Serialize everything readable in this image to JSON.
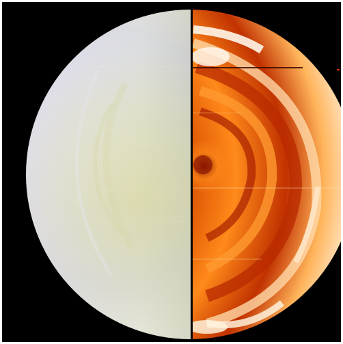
{
  "image": {
    "subject": "",
    "colors": {
      "background": "#000000",
      "frame": "#ffffff",
      "visible_hemisphere_light": "#f2f0ee",
      "visible_hemisphere_mid": "#c9cfc0",
      "visible_hemisphere_shadow": "#3a3c38",
      "visible_tint_yellow": "#d6d48a",
      "visible_tint_blue": "#b7b9e6",
      "ir_bright": "#fff3e0",
      "ir_orange": "#ff8a1a",
      "ir_red": "#d83a00",
      "ir_dark": "#8a1500"
    }
  }
}
